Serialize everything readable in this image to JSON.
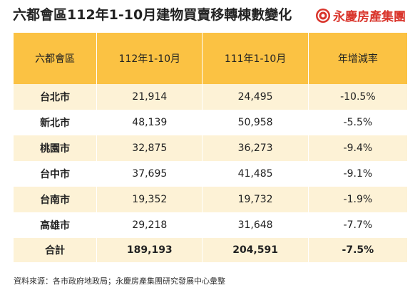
{
  "title": "六都會區112年1-10月建物買賣移轉棟數變化",
  "logo": {
    "text": "永慶房產集團"
  },
  "colors": {
    "header_bg": "#fbc243",
    "stripe_bg": "#fdf2d6",
    "brand_red": "#d9342b"
  },
  "table": {
    "headers": [
      "六都會區",
      "112年1-10月",
      "111年1-10月",
      "年增減率"
    ],
    "rows": [
      {
        "region": "台北市",
        "y112": "21,914",
        "y111": "24,495",
        "change": "-10.5%"
      },
      {
        "region": "新北市",
        "y112": "48,139",
        "y111": "50,958",
        "change": "-5.5%"
      },
      {
        "region": "桃園市",
        "y112": "32,875",
        "y111": "36,273",
        "change": "-9.4%"
      },
      {
        "region": "台中市",
        "y112": "37,695",
        "y111": "41,485",
        "change": "-9.1%"
      },
      {
        "region": "台南市",
        "y112": "19,352",
        "y111": "19,732",
        "change": "-1.9%"
      },
      {
        "region": "高雄市",
        "y112": "29,218",
        "y111": "31,648",
        "change": "-7.7%"
      }
    ],
    "total": {
      "region": "合計",
      "y112": "189,193",
      "y111": "204,591",
      "change": "-7.5%"
    }
  },
  "source": "資料來源：各市政府地政局；永慶房產集團研究發展中心彙整"
}
